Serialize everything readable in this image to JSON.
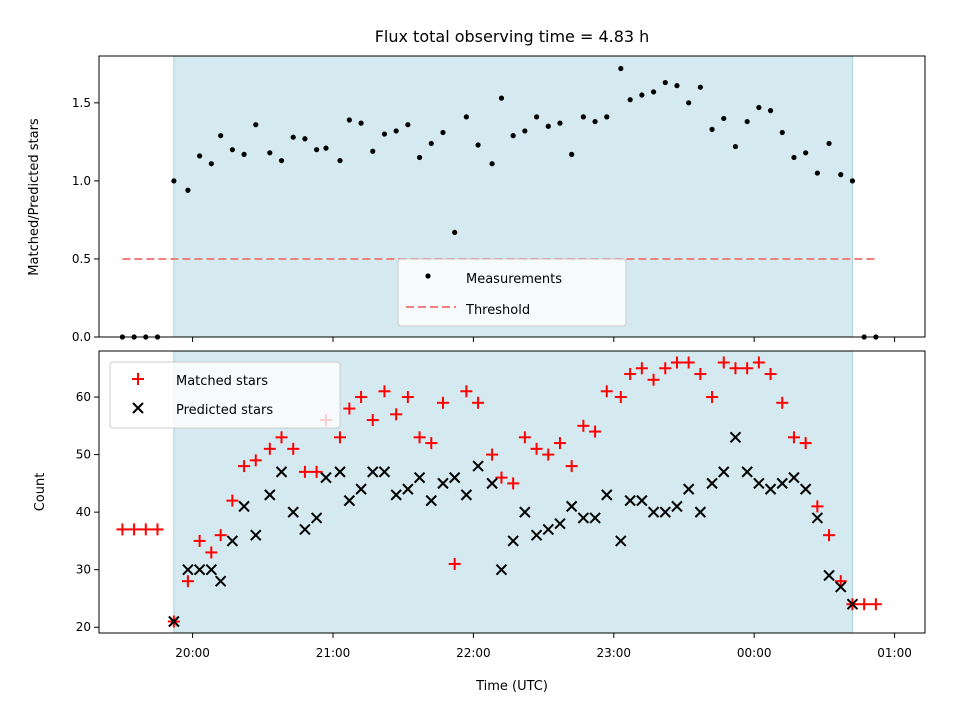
{
  "chart_data": [
    {
      "type": "scatter",
      "title": "Flux total observing time = 4.83 h",
      "ylabel": "Matched/Predicted stars",
      "xlabel": "",
      "ylim": [
        0,
        1.8
      ],
      "y_ticks": [
        "0.0",
        "0.5",
        "1.0",
        "1.5"
      ],
      "grid": false,
      "legend_position": "lower-center",
      "observing_window": {
        "start": "19:52",
        "end": "00:42",
        "color": "#d4eaf0"
      },
      "series": [
        {
          "name": "Measurements",
          "marker": "dot",
          "color": "#000000",
          "points": [
            [
              "19:30",
              0
            ],
            [
              "19:35",
              0
            ],
            [
              "19:40",
              0
            ],
            [
              "19:45",
              0
            ],
            [
              "19:52",
              1.0
            ],
            [
              "19:58",
              0.94
            ],
            [
              "20:03",
              1.16
            ],
            [
              "20:08",
              1.11
            ],
            [
              "20:12",
              1.29
            ],
            [
              "20:17",
              1.2
            ],
            [
              "20:22",
              1.17
            ],
            [
              "20:27",
              1.36
            ],
            [
              "20:33",
              1.18
            ],
            [
              "20:38",
              1.13
            ],
            [
              "20:43",
              1.28
            ],
            [
              "20:48",
              1.27
            ],
            [
              "20:53",
              1.2
            ],
            [
              "20:57",
              1.21
            ],
            [
              "21:03",
              1.13
            ],
            [
              "21:07",
              1.39
            ],
            [
              "21:12",
              1.37
            ],
            [
              "21:17",
              1.19
            ],
            [
              "21:22",
              1.3
            ],
            [
              "21:27",
              1.32
            ],
            [
              "21:32",
              1.36
            ],
            [
              "21:37",
              1.15
            ],
            [
              "21:42",
              1.24
            ],
            [
              "21:47",
              1.31
            ],
            [
              "21:52",
              0.67
            ],
            [
              "21:57",
              1.41
            ],
            [
              "22:02",
              1.23
            ],
            [
              "22:08",
              1.11
            ],
            [
              "22:12",
              1.53
            ],
            [
              "22:17",
              1.29
            ],
            [
              "22:22",
              1.32
            ],
            [
              "22:27",
              1.41
            ],
            [
              "22:32",
              1.35
            ],
            [
              "22:37",
              1.37
            ],
            [
              "22:42",
              1.17
            ],
            [
              "22:47",
              1.41
            ],
            [
              "22:52",
              1.38
            ],
            [
              "22:57",
              1.41
            ],
            [
              "23:03",
              1.72
            ],
            [
              "23:07",
              1.52
            ],
            [
              "23:12",
              1.55
            ],
            [
              "23:17",
              1.57
            ],
            [
              "23:22",
              1.63
            ],
            [
              "23:27",
              1.61
            ],
            [
              "23:32",
              1.5
            ],
            [
              "23:37",
              1.6
            ],
            [
              "23:42",
              1.33
            ],
            [
              "23:47",
              1.4
            ],
            [
              "23:52",
              1.22
            ],
            [
              "23:57",
              1.38
            ],
            [
              "00:02",
              1.47
            ],
            [
              "00:07",
              1.45
            ],
            [
              "00:12",
              1.31
            ],
            [
              "00:17",
              1.15
            ],
            [
              "00:22",
              1.18
            ],
            [
              "00:27",
              1.05
            ],
            [
              "00:32",
              1.24
            ],
            [
              "00:37",
              1.04
            ],
            [
              "00:42",
              1.0
            ],
            [
              "00:47",
              0
            ],
            [
              "00:52",
              0
            ]
          ]
        },
        {
          "name": "Threshold",
          "line_style": "dashed",
          "color": "#f08080",
          "x": [
            "19:30",
            "00:52"
          ],
          "y": [
            0.5,
            0.5
          ]
        }
      ]
    },
    {
      "type": "scatter",
      "title": "",
      "xlabel": "Time (UTC)",
      "ylabel": "Count",
      "ylim": [
        19,
        68
      ],
      "y_ticks": [
        "20",
        "30",
        "40",
        "50",
        "60"
      ],
      "x_ticks": [
        "20:00",
        "21:00",
        "22:00",
        "23:00",
        "00:00",
        "01:00"
      ],
      "grid": false,
      "legend_position": "top-left",
      "observing_window": {
        "start": "19:52",
        "end": "00:42",
        "color": "#d4eaf0"
      },
      "series": [
        {
          "name": "Matched stars",
          "marker": "plus",
          "color": "#ff0000",
          "points": [
            [
              "19:30",
              37
            ],
            [
              "19:35",
              37
            ],
            [
              "19:40",
              37
            ],
            [
              "19:45",
              37
            ],
            [
              "19:52",
              21
            ],
            [
              "19:58",
              28
            ],
            [
              "20:03",
              35
            ],
            [
              "20:08",
              33
            ],
            [
              "20:12",
              36
            ],
            [
              "20:17",
              42
            ],
            [
              "20:22",
              48
            ],
            [
              "20:27",
              49
            ],
            [
              "20:33",
              51
            ],
            [
              "20:38",
              53
            ],
            [
              "20:43",
              51
            ],
            [
              "20:48",
              47
            ],
            [
              "20:53",
              47
            ],
            [
              "20:57",
              56
            ],
            [
              "21:03",
              53
            ],
            [
              "21:07",
              58
            ],
            [
              "21:12",
              60
            ],
            [
              "21:17",
              56
            ],
            [
              "21:22",
              61
            ],
            [
              "21:27",
              57
            ],
            [
              "21:32",
              60
            ],
            [
              "21:37",
              53
            ],
            [
              "21:42",
              52
            ],
            [
              "21:47",
              59
            ],
            [
              "21:52",
              31
            ],
            [
              "21:57",
              61
            ],
            [
              "22:02",
              59
            ],
            [
              "22:08",
              50
            ],
            [
              "22:12",
              46
            ],
            [
              "22:17",
              45
            ],
            [
              "22:22",
              53
            ],
            [
              "22:27",
              51
            ],
            [
              "22:32",
              50
            ],
            [
              "22:37",
              52
            ],
            [
              "22:42",
              48
            ],
            [
              "22:47",
              55
            ],
            [
              "22:52",
              54
            ],
            [
              "22:57",
              61
            ],
            [
              "23:03",
              60
            ],
            [
              "23:07",
              64
            ],
            [
              "23:12",
              65
            ],
            [
              "23:17",
              63
            ],
            [
              "23:22",
              65
            ],
            [
              "23:27",
              66
            ],
            [
              "23:32",
              66
            ],
            [
              "23:37",
              64
            ],
            [
              "23:42",
              60
            ],
            [
              "23:47",
              66
            ],
            [
              "23:52",
              65
            ],
            [
              "23:57",
              65
            ],
            [
              "00:02",
              66
            ],
            [
              "00:07",
              64
            ],
            [
              "00:12",
              59
            ],
            [
              "00:17",
              53
            ],
            [
              "00:22",
              52
            ],
            [
              "00:27",
              41
            ],
            [
              "00:32",
              36
            ],
            [
              "00:37",
              28
            ],
            [
              "00:42",
              24
            ],
            [
              "00:47",
              24
            ],
            [
              "00:52",
              24
            ]
          ]
        },
        {
          "name": "Predicted stars",
          "marker": "x",
          "color": "#000000",
          "points": [
            [
              "19:52",
              21
            ],
            [
              "19:58",
              30
            ],
            [
              "20:03",
              30
            ],
            [
              "20:08",
              30
            ],
            [
              "20:12",
              28
            ],
            [
              "20:17",
              35
            ],
            [
              "20:22",
              41
            ],
            [
              "20:27",
              36
            ],
            [
              "20:33",
              43
            ],
            [
              "20:38",
              47
            ],
            [
              "20:43",
              40
            ],
            [
              "20:48",
              37
            ],
            [
              "20:53",
              39
            ],
            [
              "20:57",
              46
            ],
            [
              "21:03",
              47
            ],
            [
              "21:07",
              42
            ],
            [
              "21:12",
              44
            ],
            [
              "21:17",
              47
            ],
            [
              "21:22",
              47
            ],
            [
              "21:27",
              43
            ],
            [
              "21:32",
              44
            ],
            [
              "21:37",
              46
            ],
            [
              "21:42",
              42
            ],
            [
              "21:47",
              45
            ],
            [
              "21:52",
              46
            ],
            [
              "21:57",
              43
            ],
            [
              "22:02",
              48
            ],
            [
              "22:08",
              45
            ],
            [
              "22:12",
              30
            ],
            [
              "22:17",
              35
            ],
            [
              "22:22",
              40
            ],
            [
              "22:27",
              36
            ],
            [
              "22:32",
              37
            ],
            [
              "22:37",
              38
            ],
            [
              "22:42",
              41
            ],
            [
              "22:47",
              39
            ],
            [
              "22:52",
              39
            ],
            [
              "22:57",
              43
            ],
            [
              "23:03",
              35
            ],
            [
              "23:07",
              42
            ],
            [
              "23:12",
              42
            ],
            [
              "23:17",
              40
            ],
            [
              "23:22",
              40
            ],
            [
              "23:27",
              41
            ],
            [
              "23:32",
              44
            ],
            [
              "23:37",
              40
            ],
            [
              "23:42",
              45
            ],
            [
              "23:47",
              47
            ],
            [
              "23:52",
              53
            ],
            [
              "23:57",
              47
            ],
            [
              "00:02",
              45
            ],
            [
              "00:07",
              44
            ],
            [
              "00:12",
              45
            ],
            [
              "00:17",
              46
            ],
            [
              "00:22",
              44
            ],
            [
              "00:27",
              39
            ],
            [
              "00:32",
              29
            ],
            [
              "00:37",
              27
            ],
            [
              "00:42",
              24
            ]
          ]
        }
      ]
    }
  ]
}
